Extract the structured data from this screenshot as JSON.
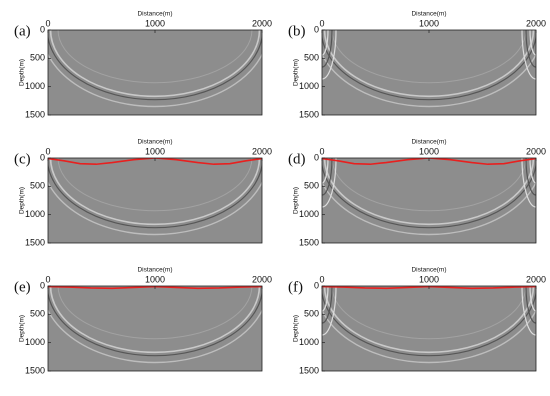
{
  "chart_data": [
    {
      "type": "image",
      "label": "(a)",
      "x_label": "Distance(m)",
      "y_label": "Depth(m)",
      "xlim": [
        0,
        2000
      ],
      "xticks": [
        0,
        1000,
        2000
      ],
      "ylim": [
        1500,
        0
      ],
      "yticks": [
        0,
        500,
        1000,
        1500
      ],
      "series": []
    },
    {
      "type": "image",
      "label": "(b)",
      "x_label": "Distance(m)",
      "y_label": "Depth(m)",
      "xlim": [
        0,
        2000
      ],
      "xticks": [
        0,
        1000,
        2000
      ],
      "ylim": [
        1500,
        0
      ],
      "yticks": [
        0,
        500,
        1000,
        1500
      ],
      "series": []
    },
    {
      "type": "image",
      "label": "(c)",
      "x_label": "Distance(m)",
      "y_label": "Depth(m)",
      "xlim": [
        0,
        2000
      ],
      "xticks": [
        0,
        1000,
        2000
      ],
      "ylim": [
        1500,
        0
      ],
      "yticks": [
        0,
        500,
        1000,
        1500
      ],
      "series": [
        {
          "color": "#e8201f",
          "x": [
            0,
            150,
            300,
            450,
            600,
            800,
            1000,
            1200,
            1400,
            1550,
            1700,
            1850,
            2000
          ],
          "values": [
            10,
            50,
            100,
            110,
            80,
            30,
            0,
            30,
            80,
            110,
            100,
            50,
            10
          ]
        }
      ]
    },
    {
      "type": "image",
      "label": "(d)",
      "x_label": "Distance(m)",
      "y_label": "Depth(m)",
      "xlim": [
        0,
        2000
      ],
      "xticks": [
        0,
        1000,
        2000
      ],
      "ylim": [
        1500,
        0
      ],
      "yticks": [
        0,
        500,
        1000,
        1500
      ],
      "series": [
        {
          "color": "#e8201f",
          "x": [
            0,
            150,
            300,
            450,
            600,
            800,
            1000,
            1200,
            1400,
            1550,
            1700,
            1850,
            2000
          ],
          "values": [
            10,
            50,
            100,
            110,
            80,
            30,
            0,
            30,
            80,
            110,
            100,
            50,
            10
          ]
        }
      ]
    },
    {
      "type": "image",
      "label": "(e)",
      "x_label": "Distance(m)",
      "y_label": "Depth(m)",
      "xlim": [
        0,
        2000
      ],
      "xticks": [
        0,
        1000,
        2000
      ],
      "ylim": [
        1500,
        0
      ],
      "yticks": [
        0,
        500,
        1000,
        1500
      ],
      "series": [
        {
          "color": "#e8201f",
          "x": [
            0,
            200,
            400,
            600,
            800,
            1000,
            1200,
            1400,
            1600,
            1800,
            2000
          ],
          "values": [
            10,
            20,
            35,
            40,
            25,
            10,
            25,
            40,
            35,
            20,
            10
          ]
        }
      ]
    },
    {
      "type": "image",
      "label": "(f)",
      "x_label": "Distance(m)",
      "y_label": "Depth(m)",
      "xlim": [
        0,
        2000
      ],
      "xticks": [
        0,
        1000,
        2000
      ],
      "ylim": [
        1500,
        0
      ],
      "yticks": [
        0,
        500,
        1000,
        1500
      ],
      "series": [
        {
          "color": "#e8201f",
          "x": [
            0,
            200,
            400,
            600,
            800,
            1000,
            1200,
            1400,
            1600,
            1800,
            2000
          ],
          "values": [
            10,
            20,
            35,
            40,
            25,
            10,
            25,
            40,
            35,
            20,
            10
          ]
        }
      ]
    }
  ]
}
